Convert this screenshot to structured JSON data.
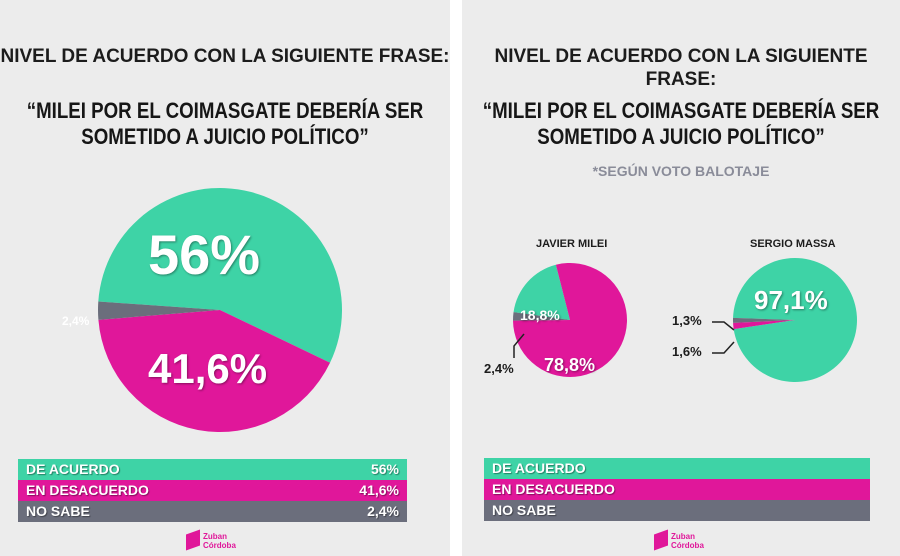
{
  "colors": {
    "agree": "#3ed3a6",
    "disagree": "#e0179a",
    "nosabe": "#6b6e7c"
  },
  "logo": {
    "line1": "Zuban",
    "line2": "Córdoba"
  },
  "chart_data": [
    {
      "type": "pie",
      "title": "NIVEL DE ACUERDO CON LA SIGUIENTE FRASE:",
      "quote": "“MILEI POR EL COIMASGATE DEBERÍA SER SOMETIDO A JUICIO POLÍTICO”",
      "slices": [
        {
          "label": "DE ACUERDO",
          "value": 56,
          "display": "56%"
        },
        {
          "label": "EN DESACUERDO",
          "value": 41.6,
          "display": "41,6%"
        },
        {
          "label": "NO SABE",
          "value": 2.4,
          "display": "2,4%"
        }
      ]
    },
    {
      "type": "pie",
      "title": "NIVEL DE ACUERDO CON LA SIGUIENTE FRASE:",
      "quote": "“MILEI POR EL COIMASGATE DEBERÍA SER SOMETIDO A JUICIO POLÍTICO”",
      "subtitle": "*SEGÚN VOTO BALOTAJE",
      "legend": [
        "DE ACUERDO",
        "EN DESACUERDO",
        "NO SABE"
      ],
      "groups": [
        {
          "name": "JAVIER MILEI",
          "slices": [
            {
              "label": "DE ACUERDO",
              "value": 18.8,
              "display": "18,8%"
            },
            {
              "label": "EN DESACUERDO",
              "value": 78.8,
              "display": "78,8%"
            },
            {
              "label": "NO SABE",
              "value": 2.4,
              "display": "2,4%"
            }
          ]
        },
        {
          "name": "SERGIO MASSA",
          "slices": [
            {
              "label": "DE ACUERDO",
              "value": 97.1,
              "display": "97,1%"
            },
            {
              "label": "EN DESACUERDO",
              "value": 1.6,
              "display": "1,6%"
            },
            {
              "label": "NO SABE",
              "value": 1.3,
              "display": "1,3%"
            }
          ]
        }
      ]
    }
  ]
}
